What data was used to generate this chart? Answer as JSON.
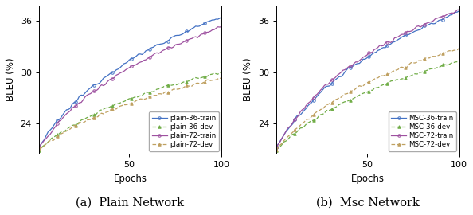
{
  "subplot_a": {
    "title": "(a)  Plain Network",
    "xlabel": "Epochs",
    "ylabel": "BLEU (%)",
    "ylim": [
      20.5,
      37.8
    ],
    "xlim": [
      1,
      100
    ],
    "yticks": [
      24,
      30,
      36
    ],
    "xticks": [
      50,
      100
    ],
    "series": [
      {
        "label": "plain-36-train",
        "color": "#4472C4",
        "linestyle": "-",
        "marker": "o",
        "markersize": 2.5,
        "markevery": 10,
        "final_val": 36.4,
        "start_val": 21.2,
        "growth": 3.5,
        "noise_std": 0.12
      },
      {
        "label": "plain-36-dev",
        "color": "#70AD47",
        "linestyle": "--",
        "marker": "^",
        "markersize": 2.5,
        "markevery": 10,
        "final_val": 30.0,
        "start_val": 21.0,
        "growth": 2.8,
        "noise_std": 0.1
      },
      {
        "label": "plain-72-train",
        "color": "#9E51A0",
        "linestyle": "-",
        "marker": "o",
        "markersize": 2.5,
        "markevery": 10,
        "final_val": 35.3,
        "start_val": 21.2,
        "growth": 3.2,
        "noise_std": 0.12
      },
      {
        "label": "plain-72-dev",
        "color": "#BFA060",
        "linestyle": "--",
        "marker": "^",
        "markersize": 2.5,
        "markevery": 10,
        "final_val": 29.3,
        "start_val": 21.0,
        "growth": 2.6,
        "noise_std": 0.1
      }
    ]
  },
  "subplot_b": {
    "title": "(b)  Msc Network",
    "xlabel": "Epochs",
    "ylabel": "BLEU (%)",
    "ylim": [
      20.5,
      37.8
    ],
    "xlim": [
      1,
      100
    ],
    "yticks": [
      24,
      30,
      36
    ],
    "xticks": [
      50,
      100
    ],
    "series": [
      {
        "label": "MSC-36-train",
        "color": "#4472C4",
        "linestyle": "-",
        "marker": "o",
        "markersize": 2.5,
        "markevery": 10,
        "final_val": 37.0,
        "start_val": 21.2,
        "growth": 3.5,
        "noise_std": 0.12
      },
      {
        "label": "MSC-36-dev",
        "color": "#70AD47",
        "linestyle": "--",
        "marker": "^",
        "markersize": 2.5,
        "markevery": 10,
        "final_val": 31.3,
        "start_val": 21.0,
        "growth": 2.8,
        "noise_std": 0.1
      },
      {
        "label": "MSC-72-train",
        "color": "#9E51A0",
        "linestyle": "-",
        "marker": "o",
        "markersize": 2.5,
        "markevery": 10,
        "final_val": 37.3,
        "start_val": 21.2,
        "growth": 3.8,
        "noise_std": 0.12
      },
      {
        "label": "MSC-72-dev",
        "color": "#BFA060",
        "linestyle": "--",
        "marker": "^",
        "markersize": 2.5,
        "markevery": 10,
        "final_val": 32.8,
        "start_val": 21.0,
        "growth": 3.0,
        "noise_std": 0.1
      }
    ]
  },
  "linewidth": 0.9,
  "legend_fontsize": 6.2,
  "tick_labelsize": 8.0,
  "axis_labelsize": 8.5,
  "title_fontsize": 10.5
}
